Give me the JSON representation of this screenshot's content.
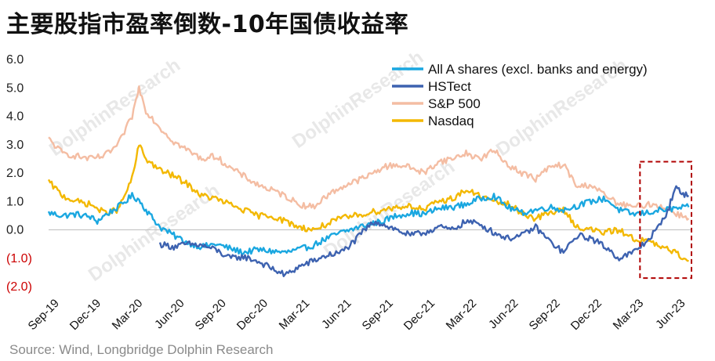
{
  "title": "主要股指市盈率倒数-10年国债收益率",
  "source": "Source: Wind, Longbridge Dolphin Research",
  "watermark": "DolphinResearch",
  "chart_data": {
    "type": "line",
    "title": "主要股指市盈率倒数-10年国债收益率",
    "xlabel": "",
    "ylabel": "",
    "ylim": [
      -2.0,
      6.0
    ],
    "y_ticks": [
      {
        "value": 6.0,
        "label": "6.0"
      },
      {
        "value": 5.0,
        "label": "5.0"
      },
      {
        "value": 4.0,
        "label": "4.0"
      },
      {
        "value": 3.0,
        "label": "3.0"
      },
      {
        "value": 2.0,
        "label": "2.0"
      },
      {
        "value": 1.0,
        "label": "1.0"
      },
      {
        "value": 0.0,
        "label": "0.0"
      },
      {
        "value": -1.0,
        "label": "(1.0)"
      },
      {
        "value": -2.0,
        "label": "(2.0)"
      }
    ],
    "x_ticks": [
      "Sep-19",
      "Dec-19",
      "Mar-20",
      "Jun-20",
      "Sep-20",
      "Dec-20",
      "Mar-21",
      "Jun-21",
      "Sep-21",
      "Dec-21",
      "Mar-22",
      "Jun-22",
      "Sep-22",
      "Dec-22",
      "Mar-23",
      "Jun-23"
    ],
    "legend_position": "top-right",
    "highlight_box": {
      "from_month": 42.5,
      "to_month": 46.2,
      "y_from": -1.7,
      "y_to": 2.4
    },
    "series": [
      {
        "name": "All A shares (excl. banks and energy)",
        "color": "#1aa7e0",
        "points": [
          [
            0,
            0.6
          ],
          [
            1,
            0.5
          ],
          [
            2,
            0.55
          ],
          [
            3,
            0.45
          ],
          [
            3.5,
            0.3
          ],
          [
            4,
            0.5
          ],
          [
            5,
            0.8
          ],
          [
            6,
            1.2
          ],
          [
            6.5,
            1.05
          ],
          [
            7,
            0.7
          ],
          [
            7.5,
            0.4
          ],
          [
            8,
            0.1
          ],
          [
            9,
            -0.2
          ],
          [
            10,
            -0.45
          ],
          [
            11,
            -0.6
          ],
          [
            12,
            -0.5
          ],
          [
            13,
            -0.65
          ],
          [
            14,
            -0.8
          ],
          [
            15,
            -0.7
          ],
          [
            16,
            -0.75
          ],
          [
            17,
            -0.8
          ],
          [
            18,
            -0.7
          ],
          [
            19,
            -0.55
          ],
          [
            20,
            -0.3
          ],
          [
            21,
            -0.1
          ],
          [
            22,
            0.05
          ],
          [
            23,
            0.2
          ],
          [
            24,
            0.3
          ],
          [
            25,
            0.5
          ],
          [
            26,
            0.6
          ],
          [
            27,
            0.55
          ],
          [
            28,
            0.75
          ],
          [
            29,
            0.8
          ],
          [
            30,
            0.9
          ],
          [
            31,
            1.1
          ],
          [
            32,
            1.2
          ],
          [
            33,
            0.8
          ],
          [
            34,
            0.6
          ],
          [
            35,
            0.7
          ],
          [
            36,
            0.8
          ],
          [
            37,
            0.7
          ],
          [
            38,
            0.85
          ],
          [
            39,
            1.0
          ],
          [
            40,
            1.1
          ],
          [
            41,
            0.7
          ],
          [
            42,
            0.55
          ],
          [
            43,
            0.6
          ],
          [
            44,
            0.7
          ],
          [
            45,
            0.75
          ],
          [
            46,
            0.8
          ]
        ]
      },
      {
        "name": "HSTect",
        "color": "#3d62b0",
        "points": [
          [
            8,
            -0.5
          ],
          [
            9,
            -0.6
          ],
          [
            10,
            -0.5
          ],
          [
            11,
            -0.55
          ],
          [
            12,
            -0.7
          ],
          [
            13,
            -1.0
          ],
          [
            14,
            -0.95
          ],
          [
            15,
            -1.1
          ],
          [
            16,
            -1.35
          ],
          [
            17,
            -1.6
          ],
          [
            18,
            -1.3
          ],
          [
            19,
            -1.1
          ],
          [
            20,
            -0.9
          ],
          [
            21,
            -0.8
          ],
          [
            22,
            -0.4
          ],
          [
            22.7,
            0.0
          ],
          [
            23.5,
            0.3
          ],
          [
            24,
            0.2
          ],
          [
            25,
            0.0
          ],
          [
            26,
            -0.2
          ],
          [
            27,
            -0.1
          ],
          [
            28,
            0.1
          ],
          [
            29,
            0.0
          ],
          [
            30,
            0.3
          ],
          [
            31,
            0.2
          ],
          [
            32,
            -0.1
          ],
          [
            33,
            -0.3
          ],
          [
            34,
            -0.2
          ],
          [
            35,
            0.1
          ],
          [
            36,
            -0.4
          ],
          [
            37,
            -0.8
          ],
          [
            38,
            -0.2
          ],
          [
            39,
            -0.3
          ],
          [
            40,
            -0.6
          ],
          [
            41,
            -1.0
          ],
          [
            42,
            -0.8
          ],
          [
            43,
            -0.4
          ],
          [
            44,
            0.2
          ],
          [
            44.6,
            0.8
          ],
          [
            45,
            1.5
          ],
          [
            45.5,
            1.3
          ],
          [
            46,
            1.2
          ]
        ]
      },
      {
        "name": "S&P 500",
        "color": "#f4bda3",
        "points": [
          [
            0,
            3.2
          ],
          [
            1,
            2.7
          ],
          [
            2,
            2.6
          ],
          [
            3,
            2.5
          ],
          [
            4,
            2.6
          ],
          [
            5,
            3.0
          ],
          [
            6,
            4.0
          ],
          [
            6.5,
            5.0
          ],
          [
            7,
            4.2
          ],
          [
            8,
            3.6
          ],
          [
            9,
            3.1
          ],
          [
            10,
            2.8
          ],
          [
            11,
            2.5
          ],
          [
            12,
            2.6
          ],
          [
            13,
            2.2
          ],
          [
            14,
            1.9
          ],
          [
            15,
            1.6
          ],
          [
            16,
            1.4
          ],
          [
            17,
            1.2
          ],
          [
            18,
            0.9
          ],
          [
            19,
            0.8
          ],
          [
            20,
            1.2
          ],
          [
            21,
            1.5
          ],
          [
            22,
            1.7
          ],
          [
            23,
            1.9
          ],
          [
            24,
            2.2
          ],
          [
            25,
            2.3
          ],
          [
            26,
            2.2
          ],
          [
            27,
            2.0
          ],
          [
            28,
            2.4
          ],
          [
            29,
            2.5
          ],
          [
            30,
            2.7
          ],
          [
            31,
            2.5
          ],
          [
            32,
            2.8
          ],
          [
            33,
            2.3
          ],
          [
            34,
            2.0
          ],
          [
            35,
            1.8
          ],
          [
            36,
            2.2
          ],
          [
            37,
            2.3
          ],
          [
            38,
            1.5
          ],
          [
            39,
            1.6
          ],
          [
            40,
            1.2
          ],
          [
            41,
            0.9
          ],
          [
            42,
            0.8
          ],
          [
            43,
            0.9
          ],
          [
            44,
            0.85
          ],
          [
            45,
            0.6
          ],
          [
            46,
            0.4
          ]
        ]
      },
      {
        "name": "Nasdaq",
        "color": "#f3b800",
        "points": [
          [
            0,
            1.7
          ],
          [
            1,
            1.2
          ],
          [
            2,
            1.0
          ],
          [
            3,
            0.9
          ],
          [
            4,
            0.6
          ],
          [
            5,
            0.7
          ],
          [
            6,
            1.8
          ],
          [
            6.5,
            3.0
          ],
          [
            7,
            2.5
          ],
          [
            8,
            2.1
          ],
          [
            9,
            1.9
          ],
          [
            10,
            1.6
          ],
          [
            11,
            1.2
          ],
          [
            12,
            1.1
          ],
          [
            13,
            0.9
          ],
          [
            14,
            0.7
          ],
          [
            15,
            0.5
          ],
          [
            16,
            0.5
          ],
          [
            17,
            0.3
          ],
          [
            18,
            0.1
          ],
          [
            19,
            0.0
          ],
          [
            20,
            0.2
          ],
          [
            21,
            0.4
          ],
          [
            22,
            0.5
          ],
          [
            23,
            0.6
          ],
          [
            24,
            0.7
          ],
          [
            25,
            0.8
          ],
          [
            26,
            0.85
          ],
          [
            27,
            0.7
          ],
          [
            28,
            1.0
          ],
          [
            29,
            1.1
          ],
          [
            30,
            1.4
          ],
          [
            31,
            1.2
          ],
          [
            32,
            1.0
          ],
          [
            33,
            0.9
          ],
          [
            34,
            0.6
          ],
          [
            35,
            0.4
          ],
          [
            36,
            0.6
          ],
          [
            37,
            0.7
          ],
          [
            38,
            0.1
          ],
          [
            39,
            0.0
          ],
          [
            40,
            -0.1
          ],
          [
            41,
            0.0
          ],
          [
            42,
            -0.3
          ],
          [
            43,
            -0.4
          ],
          [
            44,
            -0.6
          ],
          [
            45,
            -0.8
          ],
          [
            46,
            -1.1
          ]
        ]
      }
    ]
  }
}
